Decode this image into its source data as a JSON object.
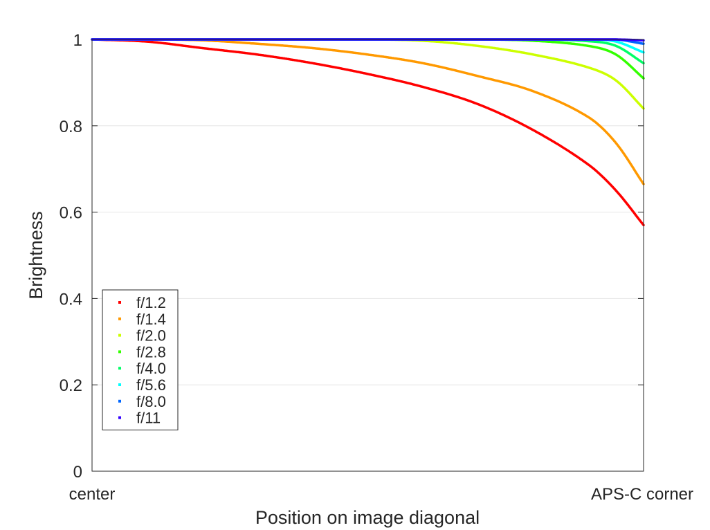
{
  "chart_data": {
    "type": "line",
    "xlabel": "Position on image diagonal",
    "ylabel": "Brightness",
    "xlim": [
      0,
      1
    ],
    "ylim": [
      0,
      1
    ],
    "x_tick_labels": [
      {
        "x": 0,
        "label": "center"
      },
      {
        "x": 1,
        "label": "APS-C corner"
      }
    ],
    "y_ticks": [
      0,
      0.2,
      0.4,
      0.6,
      0.8,
      1
    ],
    "y_tick_labels": [
      "0",
      "0.2",
      "0.4",
      "0.6",
      "0.8",
      "1"
    ],
    "grid": "y",
    "legend_position": "bottom-left",
    "x": [
      0,
      0.1,
      0.2,
      0.3,
      0.4,
      0.5,
      0.6,
      0.7,
      0.8,
      0.9,
      0.95,
      1.0
    ],
    "series": [
      {
        "name": "f/1.2",
        "color": "#ff0000",
        "values": [
          1.0,
          0.995,
          0.98,
          0.965,
          0.945,
          0.92,
          0.89,
          0.85,
          0.79,
          0.71,
          0.65,
          0.57
        ]
      },
      {
        "name": "f/1.4",
        "color": "#ff9900",
        "values": [
          1.0,
          1.0,
          0.998,
          0.99,
          0.98,
          0.965,
          0.945,
          0.915,
          0.88,
          0.82,
          0.76,
          0.665
        ]
      },
      {
        "name": "f/2.0",
        "color": "#ccff00",
        "values": [
          1.0,
          1.0,
          1.0,
          1.0,
          1.0,
          1.0,
          0.997,
          0.985,
          0.965,
          0.935,
          0.905,
          0.84
        ]
      },
      {
        "name": "f/2.8",
        "color": "#33ff00",
        "values": [
          1.0,
          1.0,
          1.0,
          1.0,
          1.0,
          1.0,
          1.0,
          1.0,
          0.997,
          0.985,
          0.965,
          0.91
        ]
      },
      {
        "name": "f/4.0",
        "color": "#00ff66",
        "values": [
          1.0,
          1.0,
          1.0,
          1.0,
          1.0,
          1.0,
          1.0,
          1.0,
          1.0,
          0.996,
          0.985,
          0.945
        ]
      },
      {
        "name": "f/5.6",
        "color": "#00ffff",
        "values": [
          1.0,
          1.0,
          1.0,
          1.0,
          1.0,
          1.0,
          1.0,
          1.0,
          1.0,
          1.0,
          0.995,
          0.97
        ]
      },
      {
        "name": "f/8.0",
        "color": "#0066ff",
        "values": [
          1.0,
          1.0,
          1.0,
          1.0,
          1.0,
          1.0,
          1.0,
          1.0,
          1.0,
          1.0,
          1.0,
          0.99
        ]
      },
      {
        "name": "f/11",
        "color": "#3300ff",
        "values": [
          1.0,
          1.0,
          1.0,
          1.0,
          1.0,
          1.0,
          1.0,
          1.0,
          1.0,
          1.0,
          1.0,
          0.998
        ]
      }
    ]
  }
}
